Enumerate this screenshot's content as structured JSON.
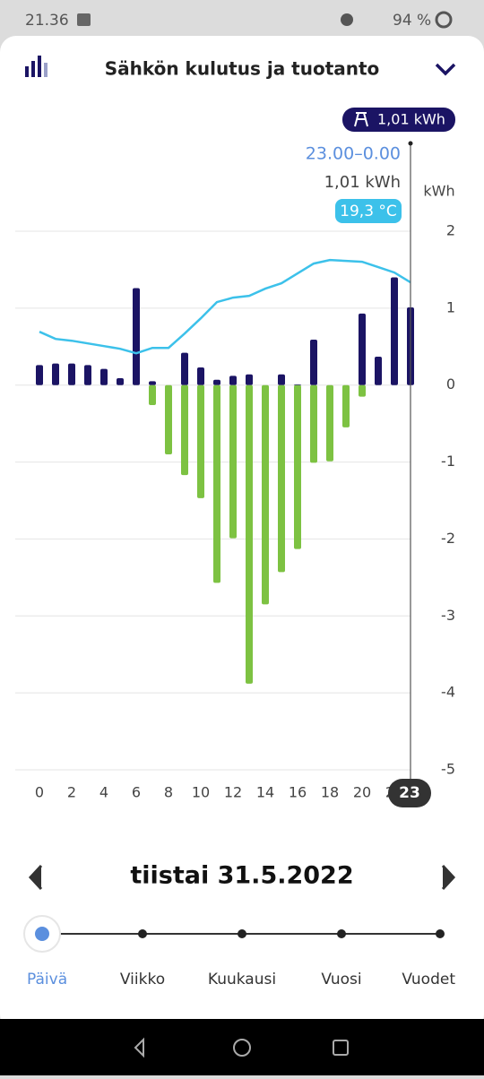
{
  "status_bar": {
    "time": "21.36",
    "battery": "94 %"
  },
  "header": {
    "title": "Sähkön kulutus ja tuotanto"
  },
  "chart_data": {
    "type": "bar",
    "unit_label": "kWh",
    "x": [
      0,
      1,
      2,
      3,
      4,
      5,
      6,
      7,
      8,
      9,
      10,
      11,
      12,
      13,
      14,
      15,
      16,
      17,
      18,
      19,
      20,
      21,
      22,
      23
    ],
    "xlim": [
      -1.5,
      23
    ],
    "xticks": [
      0,
      2,
      4,
      6,
      8,
      10,
      12,
      14,
      16,
      18,
      20,
      22
    ],
    "ylim": [
      -5,
      2
    ],
    "yticks": [
      2,
      1,
      0,
      -1,
      -2,
      -3,
      -4,
      -5
    ],
    "y2lim": [
      -35,
      25
    ],
    "grid": true,
    "series": [
      {
        "color": "#1b1464",
        "values": [
          0.26,
          0.28,
          0.28,
          0.26,
          0.21,
          0.09,
          1.26,
          0.05,
          0,
          0.42,
          0.23,
          0.07,
          0.12,
          0.14,
          0,
          0.14,
          0.01,
          0.59,
          0,
          0,
          0.93,
          0.37,
          1.4,
          1.01
        ]
      },
      {
        "color": "#7dc242",
        "values": [
          0,
          0,
          0,
          0,
          0,
          0,
          0,
          -0.26,
          -0.9,
          -1.17,
          -1.47,
          -2.57,
          -1.99,
          -3.88,
          -2.85,
          -2.43,
          -2.13,
          -1.01,
          -0.99,
          -0.55,
          -0.15,
          0,
          0,
          0
        ]
      },
      {
        "color": "#3cc1ea",
        "axis": "y2",
        "type": "line",
        "values": [
          13.8,
          13.0,
          12.8,
          12.5,
          12.2,
          11.9,
          11.4,
          12.0,
          12.0,
          13.6,
          15.3,
          17.1,
          17.6,
          17.8,
          18.6,
          19.2,
          20.3,
          21.4,
          21.8,
          21.7,
          21.6,
          21.0,
          20.4,
          19.3
        ]
      }
    ],
    "selected": {
      "hour": 23,
      "time_label": "23.00–0.00",
      "kwh_label": "1,01 kWh",
      "temp_label": "19,3 °C"
    }
  },
  "date_nav": {
    "date": "tiistai 31.5.2022"
  },
  "tabs": [
    "Päivä",
    "Viikko",
    "Kuukausi",
    "Vuosi",
    "Vuodet"
  ]
}
